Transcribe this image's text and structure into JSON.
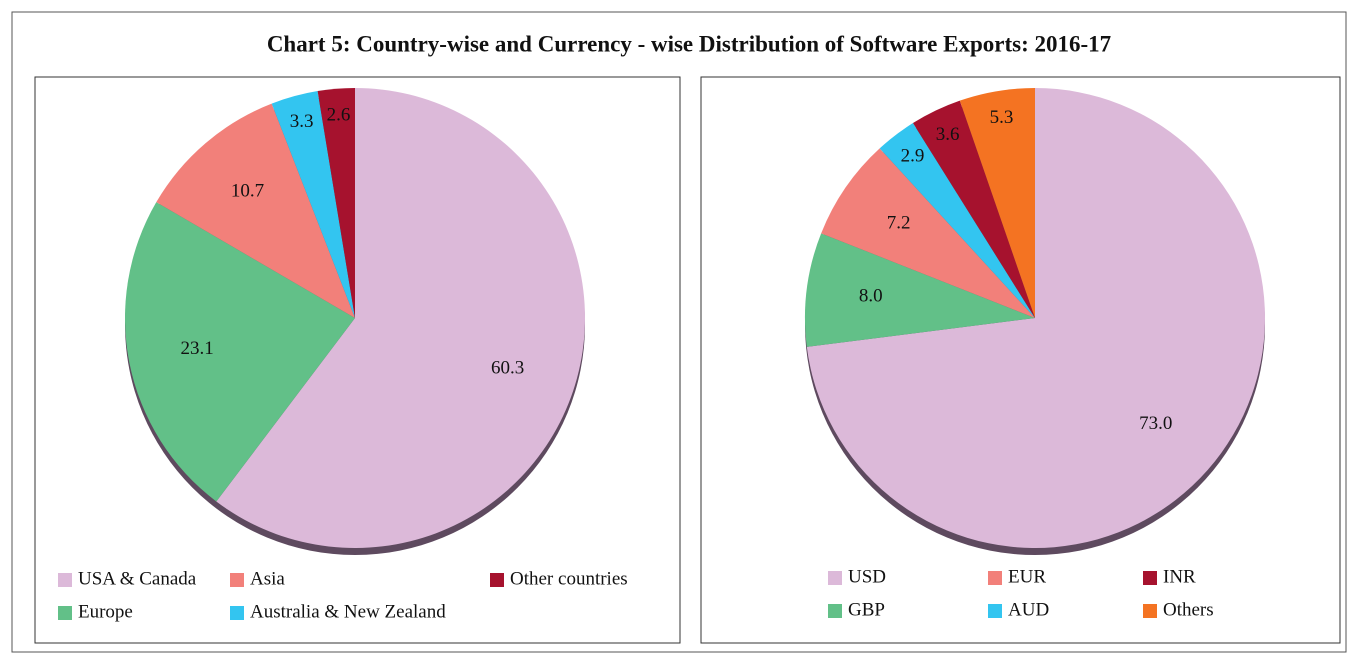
{
  "title": "Chart 5: Country-wise and Currency - wise Distribution of Software Exports: 2016-17",
  "chart_data": [
    {
      "type": "pie",
      "categories": [
        "USA & Canada",
        "Europe",
        "Asia",
        "Australia & New Zealand",
        "Other countries"
      ],
      "values": [
        60.3,
        23.1,
        10.7,
        3.3,
        2.6
      ],
      "colors": [
        "#dcb9d9",
        "#62c088",
        "#f2807a",
        "#33c5f0",
        "#a6122e"
      ]
    },
    {
      "type": "pie",
      "categories": [
        "USD",
        "GBP",
        "EUR",
        "AUD",
        "INR",
        "Others"
      ],
      "values": [
        73.0,
        8.0,
        7.2,
        2.9,
        3.6,
        5.3
      ],
      "value_labels": [
        "73.0",
        "8.0",
        "7.2",
        "2.9",
        "3.6",
        "5.3"
      ],
      "colors": [
        "#dcb9d9",
        "#62c088",
        "#f2807a",
        "#33c5f0",
        "#a6122e",
        "#f47322"
      ]
    }
  ]
}
